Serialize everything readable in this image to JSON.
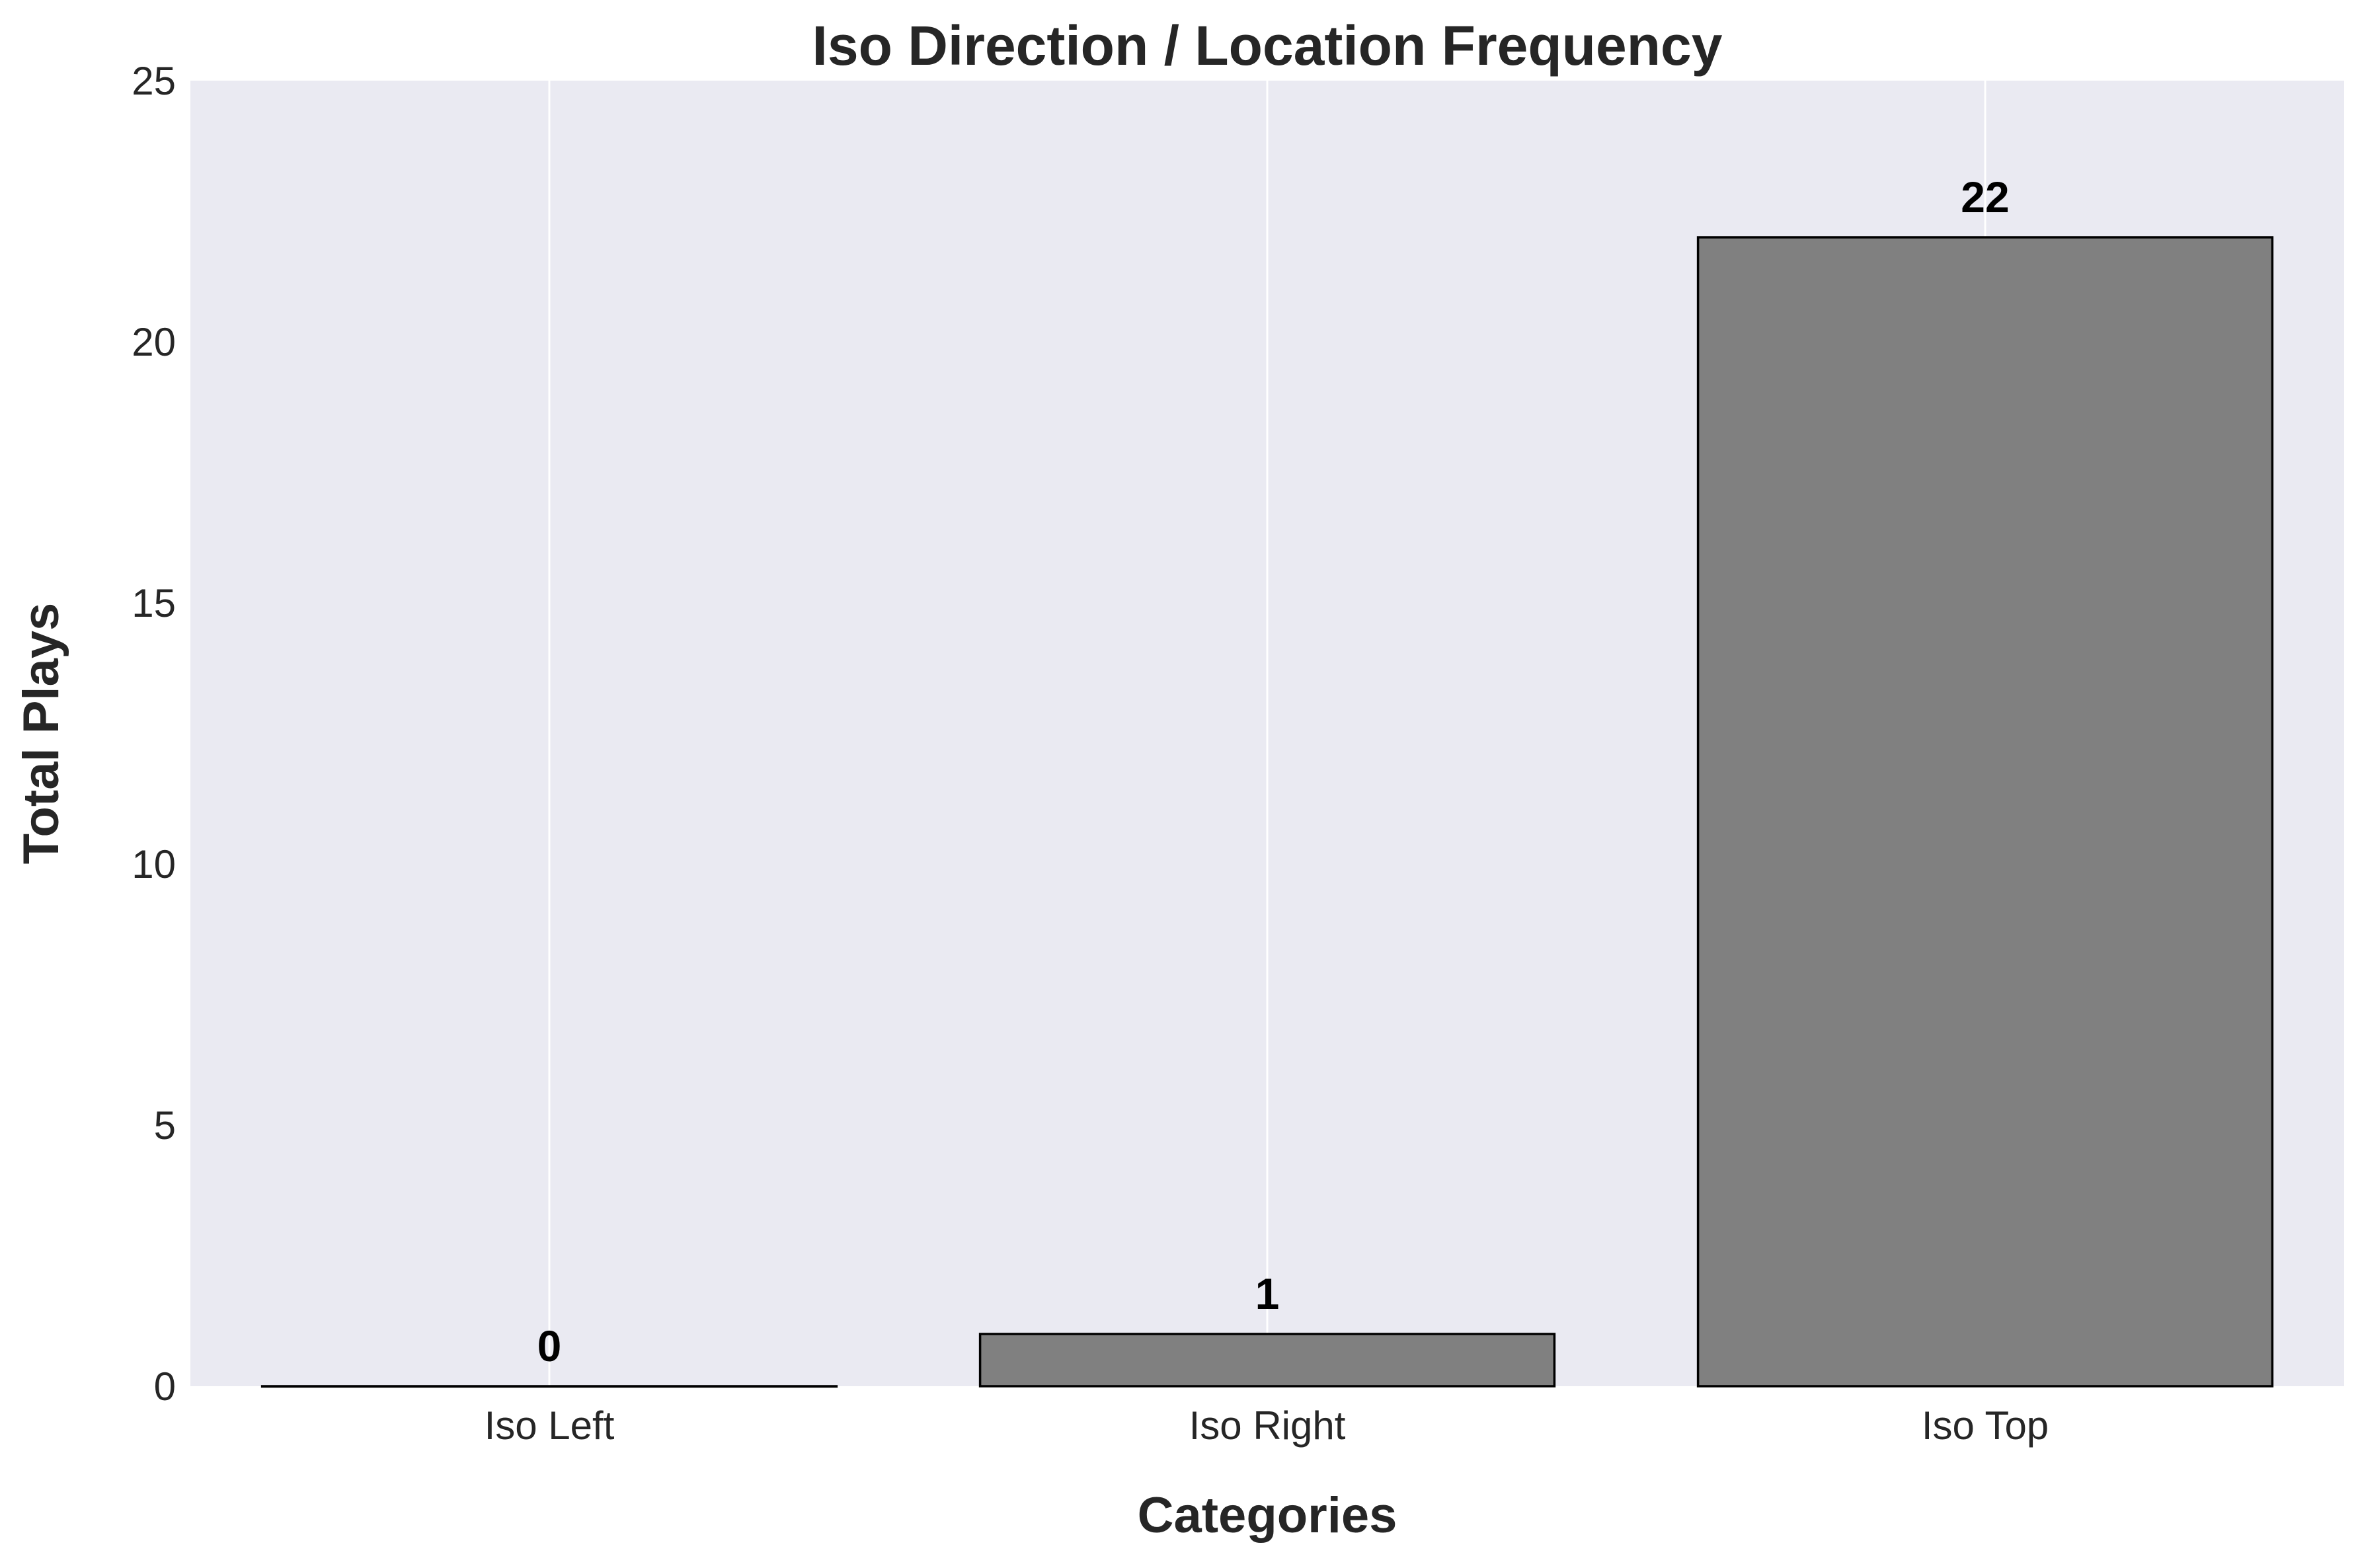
{
  "chart_data": {
    "type": "bar",
    "title": "Iso Direction / Location Frequency",
    "xlabel": "Categories",
    "ylabel": "Total Plays",
    "categories": [
      "Iso Left",
      "Iso Right",
      "Iso Top"
    ],
    "values": [
      0,
      1,
      22
    ],
    "data_labels": [
      "0",
      "1",
      "22"
    ],
    "ylim": [
      0,
      25
    ],
    "yticks": [
      0,
      5,
      10,
      15,
      20,
      25
    ],
    "ytick_labels": [
      "0",
      "5",
      "10",
      "15",
      "20",
      "25"
    ],
    "grid": "vertical",
    "legend": "none"
  },
  "colors": {
    "plot_background": "#eaeaf2",
    "bar_fill": "#808080",
    "bar_edge": "#000000",
    "grid": "#ffffff",
    "text": "#262626"
  }
}
